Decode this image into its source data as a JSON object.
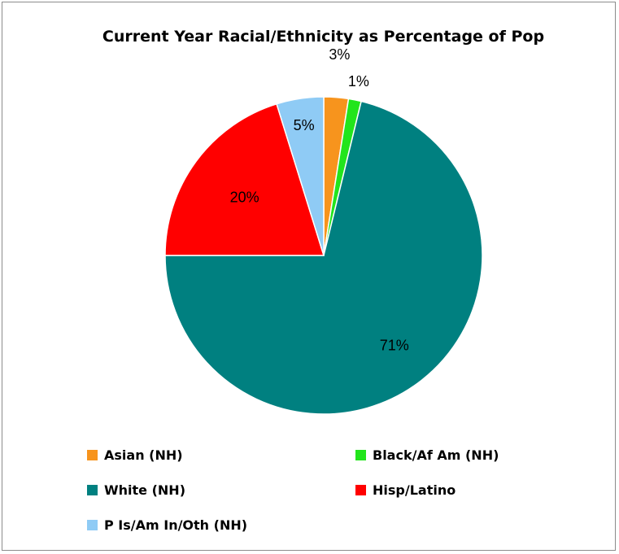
{
  "chart_data": {
    "type": "pie",
    "title": "Current Year Racial/Ethnicity as Percentage of Pop",
    "categories": [
      "Asian (NH)",
      "Black/Af Am (NH)",
      "White (NH)",
      "Hisp/Latino",
      "P Is/Am In/Oth (NH)"
    ],
    "values": [
      2.5,
      1.3,
      71.2,
      20.2,
      4.8
    ],
    "labels": [
      "3%",
      "1%",
      "71%",
      "20%",
      "5%"
    ],
    "colors": [
      "#F7941D",
      "#22E51C",
      "#008080",
      "#FF0000",
      "#8FCBF5"
    ],
    "legend_position": "bottom"
  }
}
